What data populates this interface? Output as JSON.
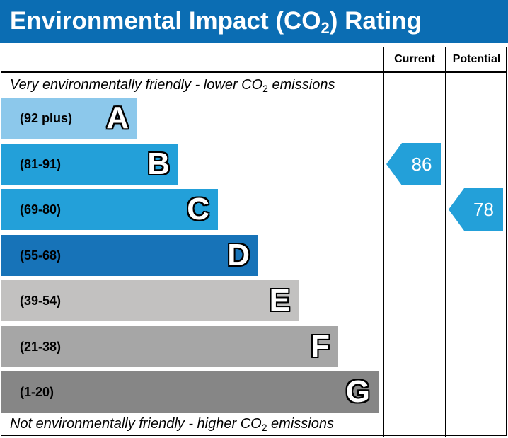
{
  "header": {
    "title_main": "Environmental Impact (CO",
    "title_sub": "2",
    "title_end": ") Rating"
  },
  "columns": {
    "current": "Current",
    "potential": "Potential"
  },
  "captions": {
    "top_main": "Very environmentally friendly - lower CO",
    "top_sub": "2",
    "top_end": " emissions",
    "bottom_main": "Not environmentally friendly - higher CO",
    "bottom_sub": "2",
    "bottom_end": " emissions"
  },
  "chart_data": {
    "type": "bar",
    "title": "Environmental Impact (CO2) Rating",
    "bands": [
      {
        "letter": "A",
        "range": "(92 plus)",
        "color": "#8cc8eb"
      },
      {
        "letter": "B",
        "range": "(81-91)",
        "color": "#23a0d9"
      },
      {
        "letter": "C",
        "range": "(69-80)",
        "color": "#23a0d9"
      },
      {
        "letter": "D",
        "range": "(55-68)",
        "color": "#1773b8"
      },
      {
        "letter": "E",
        "range": "(39-54)",
        "color": "#c2c1c0"
      },
      {
        "letter": "F",
        "range": "(21-38)",
        "color": "#a6a6a6"
      },
      {
        "letter": "G",
        "range": "(1-20)",
        "color": "#868686"
      }
    ],
    "current": {
      "label": "Current",
      "value": 86,
      "band": "B",
      "color": "#23a0d9"
    },
    "potential": {
      "label": "Potential",
      "value": 78,
      "band": "C",
      "color": "#23a0d9"
    }
  }
}
